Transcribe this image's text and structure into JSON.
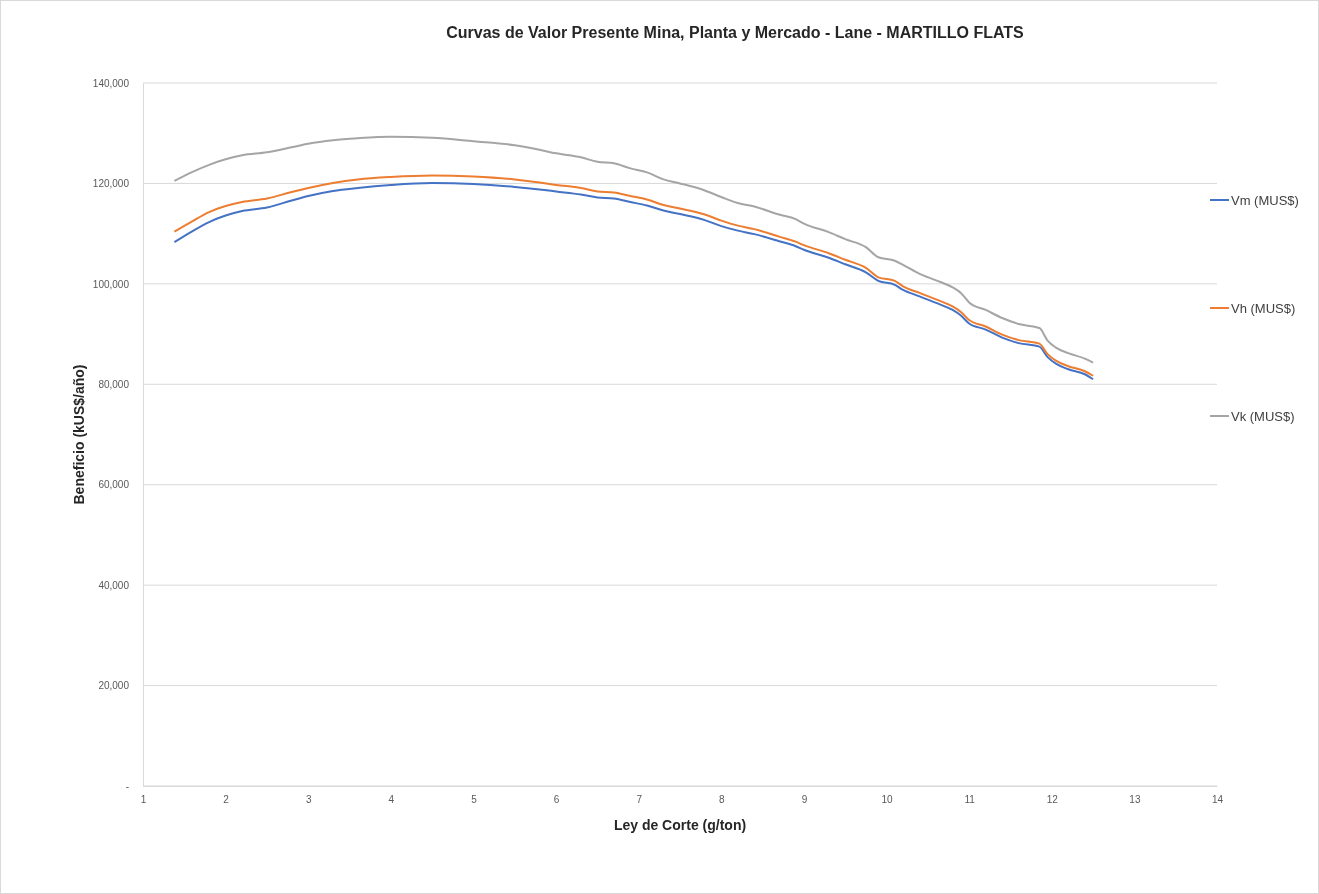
{
  "chart_data": {
    "type": "line",
    "title": "Curvas de Valor Presente Mina, Planta y Mercado - Lane - MARTILLO FLATS",
    "xlabel": "Ley de Corte (g/ton)",
    "ylabel": "Beneficio (kUS$/año)",
    "x": [
      1.38,
      1.6,
      1.8,
      2.0,
      2.2,
      2.5,
      2.8,
      3.0,
      3.3,
      3.6,
      4.0,
      4.5,
      5.0,
      5.5,
      5.8,
      6.0,
      6.3,
      6.5,
      6.7,
      6.9,
      7.1,
      7.3,
      7.5,
      7.8,
      8.0,
      8.2,
      8.4,
      8.7,
      8.9,
      9.0,
      9.3,
      9.5,
      9.75,
      9.9,
      10.1,
      10.2,
      10.4,
      10.6,
      10.8,
      10.9,
      11.0,
      11.2,
      11.4,
      11.6,
      11.85,
      11.95,
      12.05,
      12.2,
      12.4,
      12.5
    ],
    "series": [
      {
        "name": "Vm (MUS$)",
        "color": "#4472c4",
        "values": [
          108300,
          110500,
          112300,
          113600,
          114500,
          115200,
          116600,
          117500,
          118500,
          119100,
          119700,
          120100,
          119900,
          119300,
          118800,
          118400,
          117800,
          117200,
          117000,
          116300,
          115600,
          114600,
          113900,
          112700,
          111500,
          110600,
          109900,
          108500,
          107500,
          106800,
          105200,
          103900,
          102300,
          100600,
          99800,
          98800,
          97500,
          96200,
          94800,
          93700,
          92100,
          90900,
          89300,
          88200,
          87500,
          85400,
          84100,
          83000,
          82000,
          81000
        ]
      },
      {
        "name": "Vh (MUS$)",
        "color": "#ed7d31",
        "values": [
          110400,
          112500,
          114300,
          115500,
          116300,
          117000,
          118300,
          119100,
          120100,
          120800,
          121300,
          121600,
          121400,
          120800,
          120200,
          119700,
          119100,
          118400,
          118200,
          117500,
          116800,
          115700,
          115000,
          113800,
          112600,
          111600,
          110900,
          109400,
          108400,
          107700,
          106100,
          104800,
          103200,
          101300,
          100600,
          99500,
          98200,
          96900,
          95500,
          94400,
          92800,
          91500,
          89900,
          88800,
          88100,
          86000,
          84700,
          83600,
          82600,
          81700
        ]
      },
      {
        "name": "Vk (MUS$)",
        "color": "#a5a5a5",
        "values": [
          120500,
          122300,
          123700,
          124800,
          125600,
          126200,
          127200,
          127900,
          128600,
          129000,
          129300,
          129100,
          128400,
          127600,
          126700,
          126000,
          125200,
          124300,
          124000,
          123000,
          122200,
          120800,
          120000,
          118600,
          117300,
          116100,
          115400,
          113800,
          112900,
          112000,
          110300,
          108900,
          107300,
          105300,
          104600,
          103800,
          102000,
          100700,
          99300,
          98200,
          96300,
          94800,
          93200,
          92000,
          91200,
          88700,
          87300,
          86200,
          85100,
          84300
        ]
      }
    ],
    "xlim": [
      1,
      14
    ],
    "xticks": [
      1,
      2,
      3,
      4,
      5,
      6,
      7,
      8,
      9,
      10,
      11,
      12,
      13,
      14
    ],
    "ylim": [
      0,
      140000
    ],
    "yticks": [
      {
        "value": 0,
        "label": "-"
      },
      {
        "value": 20000,
        "label": "20,000"
      },
      {
        "value": 40000,
        "label": "40,000"
      },
      {
        "value": 60000,
        "label": "60,000"
      },
      {
        "value": 80000,
        "label": "80,000"
      },
      {
        "value": 100000,
        "label": "100,000"
      },
      {
        "value": 120000,
        "label": "120,000"
      },
      {
        "value": 140000,
        "label": "140,000"
      }
    ],
    "grid": "y",
    "legend": "right",
    "marker": "none",
    "line_style": "solid"
  }
}
